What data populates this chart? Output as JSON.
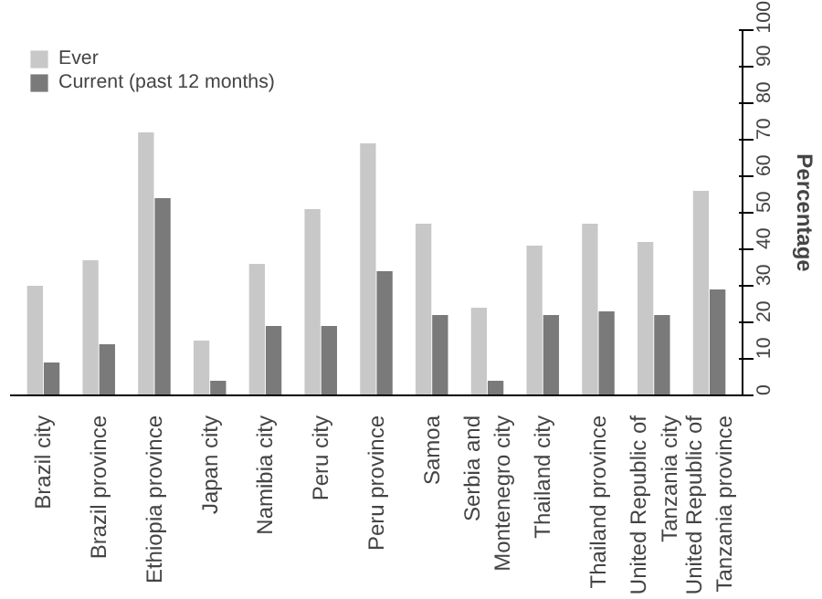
{
  "chart_data": {
    "type": "bar",
    "ylabel": "Percentage",
    "categories": [
      "Brazil city",
      "Brazil province",
      "Ethiopia province",
      "Japan city",
      "Namibia city",
      "Peru city",
      "Peru province",
      "Samoa",
      "Serbia and Montenegro city",
      "Thailand city",
      "Thailand province",
      "United Republic of Tanzania city",
      "United Republic of Tanzania province"
    ],
    "series": [
      {
        "name": "Ever",
        "color": "#c8c8c8",
        "values": [
          30,
          37,
          72,
          15,
          36,
          51,
          69,
          47,
          24,
          41,
          47,
          42,
          56
        ]
      },
      {
        "name": "Current (past 12 months)",
        "color": "#7a7a7a",
        "values": [
          9,
          14,
          54,
          4,
          19,
          19,
          34,
          22,
          4,
          22,
          23,
          22,
          29
        ]
      }
    ],
    "ylim": [
      0,
      100
    ],
    "yticks": [
      0,
      10,
      20,
      30,
      40,
      50,
      60,
      70,
      80,
      90,
      100
    ],
    "legend": "top left",
    "grid": false
  }
}
